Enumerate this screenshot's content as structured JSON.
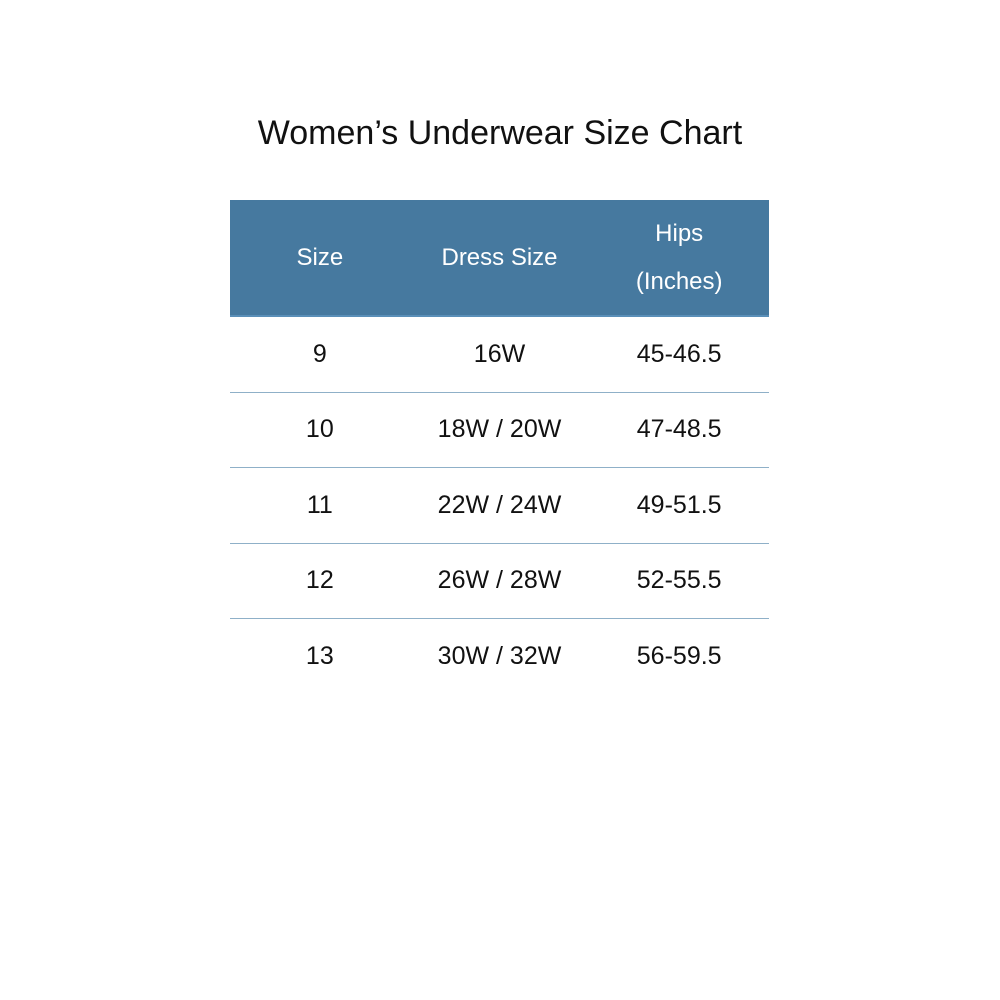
{
  "title": "Women’s Underwear Size Chart",
  "colors": {
    "header_bg": "#46799f",
    "row_divider": "#8fb0c8"
  },
  "table": {
    "headers": [
      [
        "Size"
      ],
      [
        "Dress Size"
      ],
      [
        "Hips",
        "(Inches)"
      ]
    ],
    "rows": [
      [
        "9",
        "16W",
        "45-46.5"
      ],
      [
        "10",
        "18W / 20W",
        "47-48.5"
      ],
      [
        "11",
        "22W / 24W",
        "49-51.5"
      ],
      [
        "12",
        "26W / 28W",
        "52-55.5"
      ],
      [
        "13",
        "30W / 32W",
        "56-59.5"
      ]
    ]
  }
}
